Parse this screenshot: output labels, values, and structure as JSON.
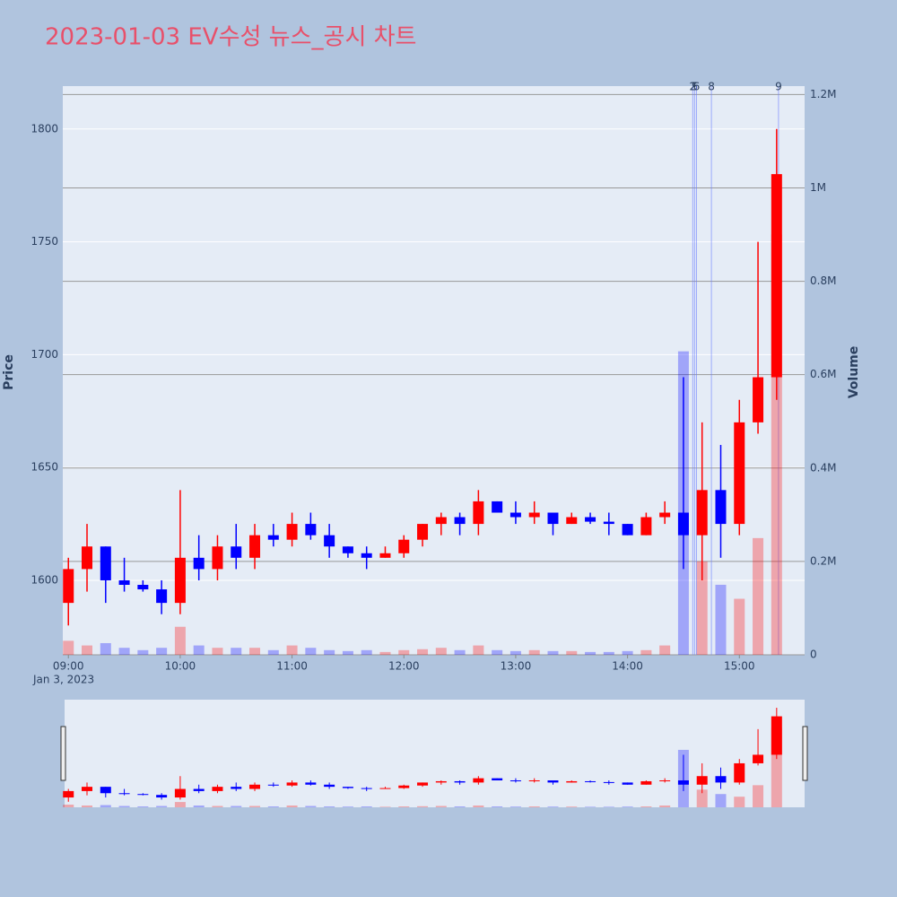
{
  "chart_data": {
    "type": "candlestick",
    "title": "2023-01-03 EV수성 뉴스_공시 차트",
    "y_label": "Price",
    "y2_label": "Volume",
    "x_date_label": "Jan 3, 2023",
    "up_color": "#ff0000",
    "down_color": "#0000ff",
    "x": [
      "2023-01-03T09:00",
      "2023-01-03T09:10",
      "2023-01-03T09:20",
      "2023-01-03T09:30",
      "2023-01-03T09:40",
      "2023-01-03T09:50",
      "2023-01-03T10:00",
      "2023-01-03T10:10",
      "2023-01-03T10:20",
      "2023-01-03T10:30",
      "2023-01-03T10:40",
      "2023-01-03T10:50",
      "2023-01-03T11:00",
      "2023-01-03T11:10",
      "2023-01-03T11:20",
      "2023-01-03T11:30",
      "2023-01-03T11:40",
      "2023-01-03T11:50",
      "2023-01-03T12:00",
      "2023-01-03T12:10",
      "2023-01-03T12:20",
      "2023-01-03T12:30",
      "2023-01-03T12:40",
      "2023-01-03T12:50",
      "2023-01-03T13:00",
      "2023-01-03T13:10",
      "2023-01-03T13:20",
      "2023-01-03T13:30",
      "2023-01-03T13:40",
      "2023-01-03T13:50",
      "2023-01-03T14:00",
      "2023-01-03T14:10",
      "2023-01-03T14:20",
      "2023-01-03T14:30",
      "2023-01-03T14:40",
      "2023-01-03T14:50",
      "2023-01-03T15:00",
      "2023-01-03T15:10",
      "2023-01-03T15:20"
    ],
    "open": [
      1590,
      1605,
      1615,
      1600,
      1598,
      1596,
      1590,
      1610,
      1605,
      1615,
      1610,
      1620,
      1618,
      1625,
      1620,
      1615,
      1612,
      1610,
      1612,
      1618,
      1625,
      1628,
      1625,
      1635,
      1630,
      1628,
      1630,
      1625,
      1628,
      1626,
      1625,
      1620,
      1628,
      1630,
      1620,
      1640,
      1625,
      1670,
      1690
    ],
    "high": [
      1610,
      1625,
      1615,
      1610,
      1600,
      1600,
      1640,
      1620,
      1620,
      1625,
      1625,
      1625,
      1630,
      1630,
      1625,
      1615,
      1615,
      1615,
      1620,
      1625,
      1630,
      1630,
      1640,
      1635,
      1635,
      1635,
      1630,
      1630,
      1630,
      1630,
      1625,
      1630,
      1635,
      1690,
      1670,
      1660,
      1680,
      1750,
      1800
    ],
    "low": [
      1580,
      1595,
      1590,
      1595,
      1595,
      1585,
      1585,
      1600,
      1600,
      1605,
      1605,
      1615,
      1615,
      1618,
      1610,
      1610,
      1605,
      1610,
      1610,
      1615,
      1620,
      1620,
      1620,
      1630,
      1625,
      1625,
      1620,
      1625,
      1625,
      1620,
      1620,
      1620,
      1625,
      1605,
      1600,
      1610,
      1620,
      1665,
      1680
    ],
    "close": [
      1605,
      1615,
      1600,
      1598,
      1596,
      1590,
      1610,
      1605,
      1615,
      1610,
      1620,
      1618,
      1625,
      1620,
      1615,
      1612,
      1610,
      1612,
      1618,
      1625,
      1628,
      1625,
      1635,
      1630,
      1628,
      1630,
      1625,
      1628,
      1626,
      1625,
      1620,
      1628,
      1630,
      1620,
      1640,
      1625,
      1670,
      1690,
      1780
    ],
    "volume": [
      30000,
      20000,
      25000,
      15000,
      10000,
      15000,
      60000,
      20000,
      15000,
      15000,
      15000,
      10000,
      20000,
      15000,
      10000,
      8000,
      10000,
      6000,
      10000,
      12000,
      15000,
      10000,
      20000,
      10000,
      8000,
      10000,
      8000,
      8000,
      6000,
      6000,
      8000,
      10000,
      20000,
      650000,
      200000,
      150000,
      120000,
      250000,
      900000
    ],
    "xlim": [
      "2023-01-03T08:57",
      "2023-01-03T15:35"
    ],
    "xticks": [
      {
        "value": "2023-01-03T09:00",
        "label": "09:00"
      },
      {
        "value": "2023-01-03T10:00",
        "label": "10:00"
      },
      {
        "value": "2023-01-03T11:00",
        "label": "11:00"
      },
      {
        "value": "2023-01-03T12:00",
        "label": "12:00"
      },
      {
        "value": "2023-01-03T13:00",
        "label": "13:00"
      },
      {
        "value": "2023-01-03T14:00",
        "label": "14:00"
      },
      {
        "value": "2023-01-03T15:00",
        "label": "15:00"
      }
    ],
    "ylim": [
      1567,
      1819
    ],
    "yticks": [
      1600,
      1650,
      1700,
      1750,
      1800
    ],
    "y2lim": [
      0,
      1218000
    ],
    "y2ticks": [
      0,
      {
        "value": 200000,
        "label": "0.2M"
      },
      {
        "value": 400000,
        "label": "0.4M"
      },
      {
        "value": 600000,
        "label": "0.6M"
      },
      {
        "value": 800000,
        "label": "0.8M"
      },
      {
        "value": 1000000,
        "label": "1M"
      },
      {
        "value": 1200000,
        "label": "1.2M"
      }
    ],
    "annotations": [
      {
        "x": "2023-01-03T14:35",
        "text": "2"
      },
      {
        "x": "2023-01-03T14:36",
        "text": "5"
      },
      {
        "x": "2023-01-03T14:37",
        "text": "6"
      },
      {
        "x": "2023-01-03T14:45",
        "text": "8"
      },
      {
        "x": "2023-01-03T15:21",
        "text": "9"
      }
    ]
  }
}
